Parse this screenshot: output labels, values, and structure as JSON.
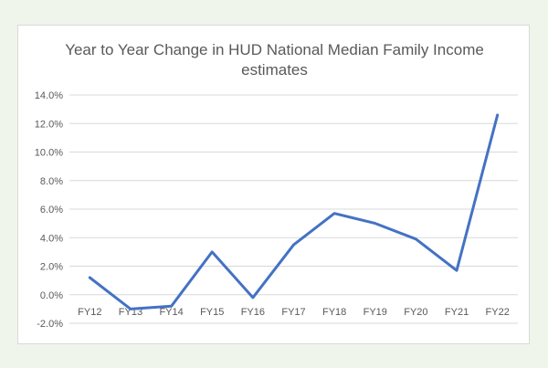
{
  "chart_data": {
    "type": "line",
    "title_lines": [
      "Year to Year Change in HUD National Median Family Income",
      "estimates"
    ],
    "xlabel": "",
    "ylabel": "",
    "categories": [
      "FY12",
      "FY13",
      "FY14",
      "FY15",
      "FY16",
      "FY17",
      "FY18",
      "FY19",
      "FY20",
      "FY21",
      "FY22"
    ],
    "series": [
      {
        "values": [
          1.2,
          -1.0,
          -0.8,
          3.0,
          -0.2,
          3.5,
          5.7,
          5.0,
          3.9,
          1.7,
          12.6
        ]
      }
    ],
    "ylim": [
      -2.0,
      14.0
    ],
    "yticks": [
      -2.0,
      0.0,
      2.0,
      4.0,
      6.0,
      8.0,
      10.0,
      12.0,
      14.0
    ],
    "ytick_format": "percent_1dp",
    "grid": true,
    "legend": "none",
    "colors": {
      "line": "#4472c4",
      "grid": "#d9d9d9",
      "text": "#595959"
    }
  }
}
